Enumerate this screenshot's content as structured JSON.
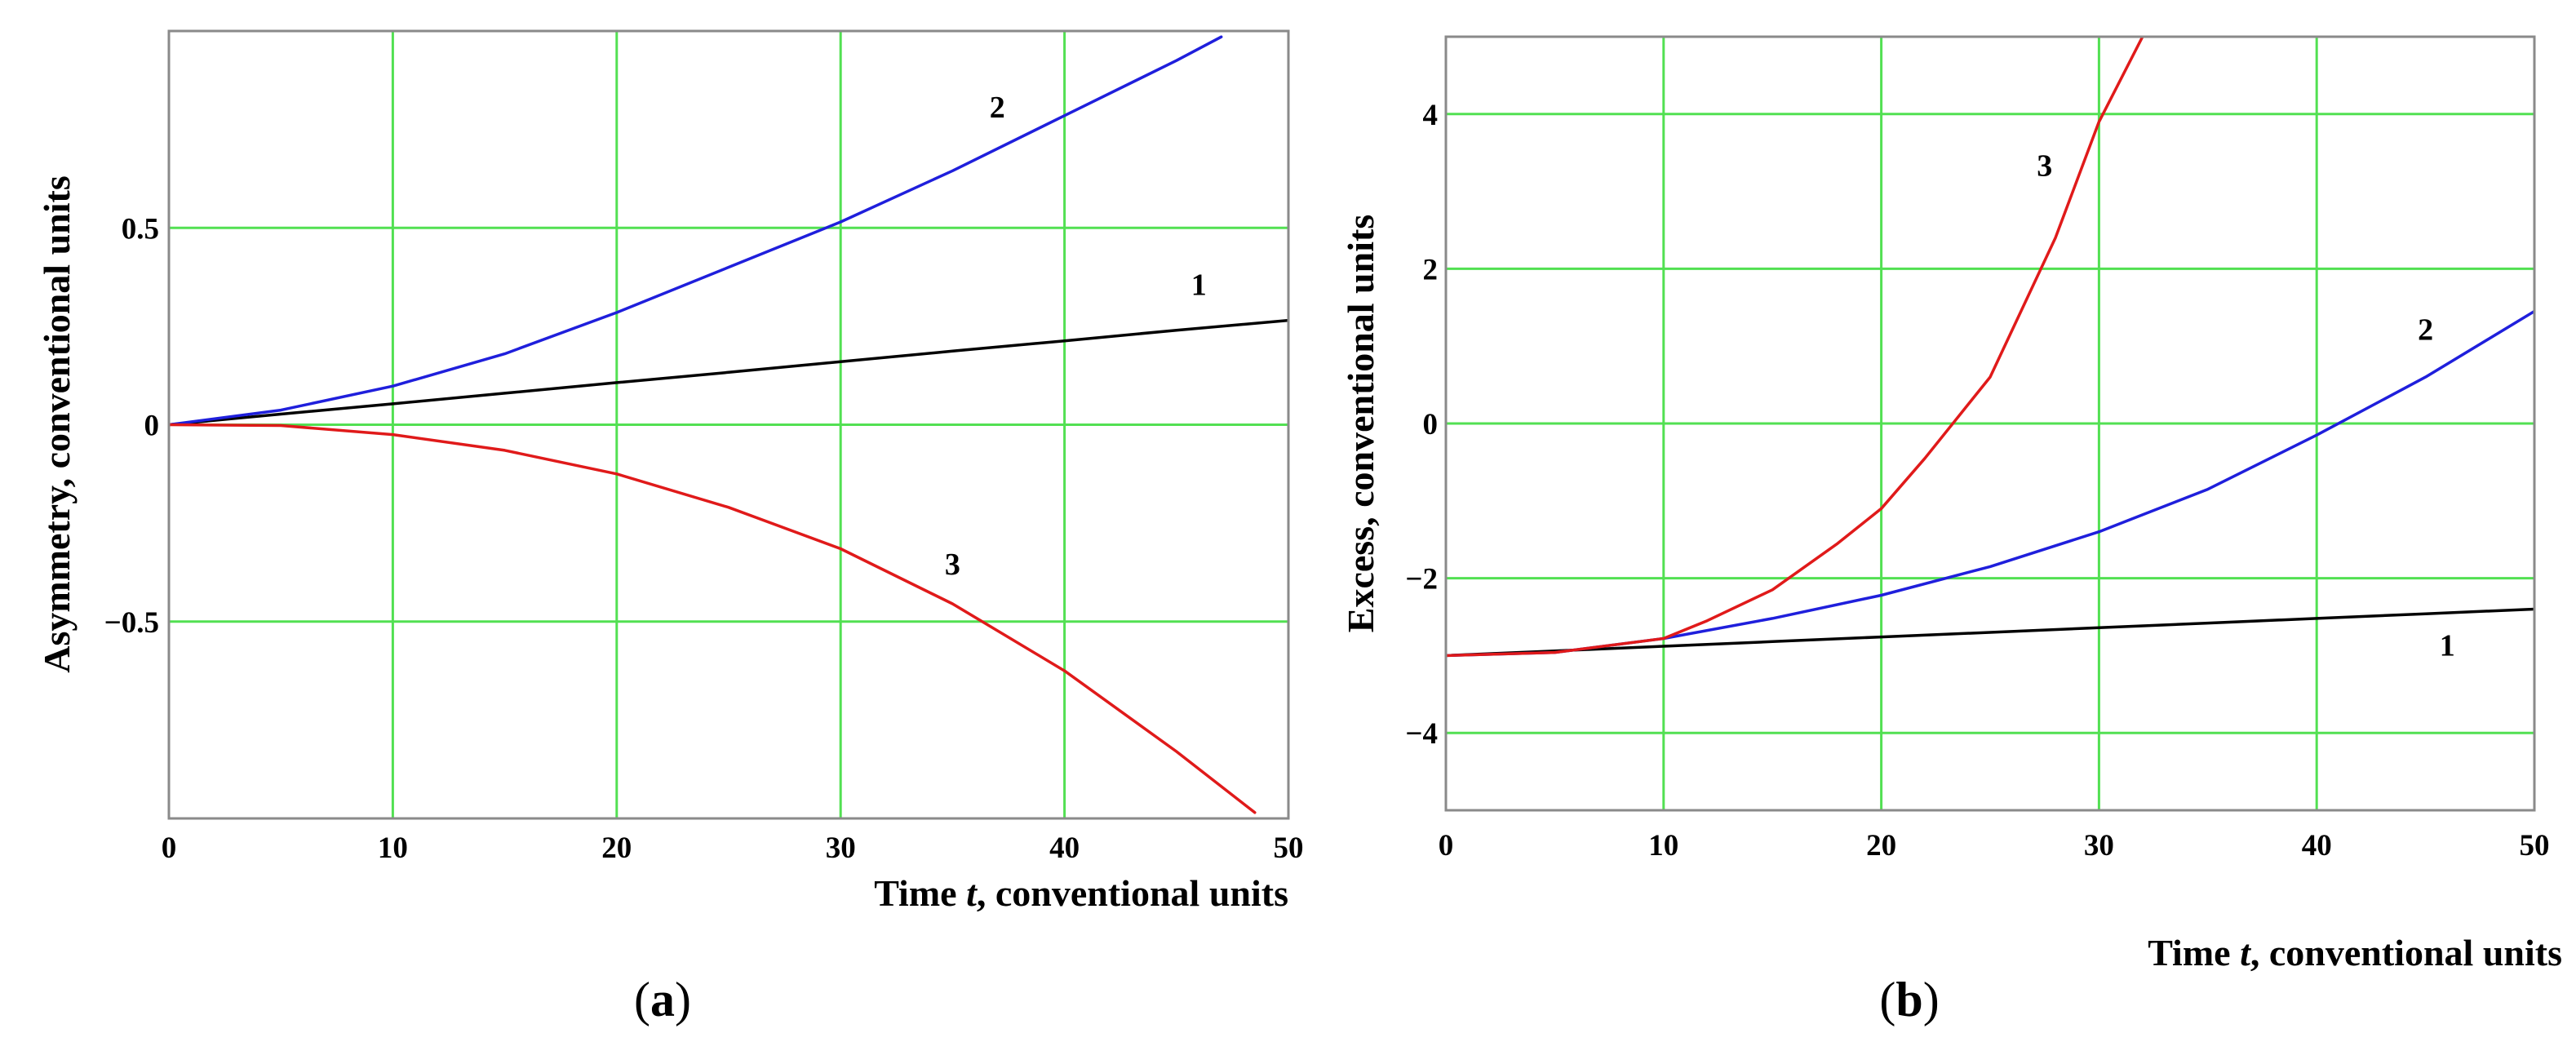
{
  "chart_data": [
    {
      "type": "line",
      "panel_label_parts": [
        "(",
        "a",
        ")"
      ],
      "xlabel_parts": [
        "Time ",
        "t",
        ", conventional units"
      ],
      "ylabel": "Asymmetry, conventional units",
      "xlim": [
        0,
        50
      ],
      "ylim": [
        -1.0,
        1.0
      ],
      "grid": true,
      "x_ticks": [
        0,
        10,
        20,
        30,
        40,
        50
      ],
      "x_tick_labels": [
        "0",
        "10",
        "20",
        "30",
        "40",
        "50"
      ],
      "y_ticks": [
        -0.5,
        0,
        0.5
      ],
      "y_tick_labels": [
        "−0.5",
        "0",
        "0.5"
      ],
      "series": [
        {
          "name": "1",
          "color": "#000000",
          "x": [
            0,
            5,
            10,
            15,
            20,
            25,
            30,
            35,
            40,
            45,
            50
          ],
          "y": [
            0,
            0.027,
            0.053,
            0.08,
            0.107,
            0.133,
            0.16,
            0.187,
            0.213,
            0.24,
            0.265
          ]
        },
        {
          "name": "2",
          "color": "#1f1fdc",
          "x": [
            0,
            5,
            10,
            15,
            20,
            25,
            30,
            35,
            40,
            45,
            47
          ],
          "y": [
            0,
            0.037,
            0.098,
            0.18,
            0.285,
            0.4,
            0.515,
            0.645,
            0.785,
            0.925,
            0.985
          ]
        },
        {
          "name": "3",
          "color": "#e01a1a",
          "x": [
            0,
            5,
            10,
            15,
            20,
            25,
            30,
            35,
            40,
            45,
            48.5
          ],
          "y": [
            0,
            -0.002,
            -0.025,
            -0.065,
            -0.125,
            -0.21,
            -0.315,
            -0.455,
            -0.625,
            -0.83,
            -0.985
          ]
        }
      ],
      "annotations": [
        {
          "text": "1",
          "x": 46,
          "y": 0.33
        },
        {
          "text": "2",
          "x": 37,
          "y": 0.78
        },
        {
          "text": "3",
          "x": 35,
          "y": -0.38
        }
      ]
    },
    {
      "type": "line",
      "panel_label_parts": [
        "(",
        "b",
        ")"
      ],
      "xlabel_parts": [
        "Time ",
        "t",
        ", conventional units"
      ],
      "ylabel": "Excess, conventional units",
      "xlim": [
        0,
        50
      ],
      "ylim": [
        -5,
        5
      ],
      "grid": true,
      "x_ticks": [
        0,
        10,
        20,
        30,
        40,
        50
      ],
      "x_tick_labels": [
        "0",
        "10",
        "20",
        "30",
        "40",
        "50"
      ],
      "y_ticks": [
        -4,
        -2,
        0,
        2,
        4
      ],
      "y_tick_labels": [
        "−4",
        "−2",
        "0",
        "2",
        "4"
      ],
      "series": [
        {
          "name": "1",
          "color": "#000000",
          "x": [
            0,
            5,
            10,
            15,
            20,
            25,
            30,
            35,
            40,
            45,
            50
          ],
          "y": [
            -3.0,
            -2.94,
            -2.88,
            -2.82,
            -2.76,
            -2.7,
            -2.64,
            -2.58,
            -2.52,
            -2.46,
            -2.4
          ]
        },
        {
          "name": "2",
          "color": "#1f1fdc",
          "x": [
            0,
            5,
            10,
            15,
            20,
            25,
            30,
            35,
            40,
            45,
            50
          ],
          "y": [
            -3.0,
            -2.96,
            -2.78,
            -2.52,
            -2.22,
            -1.85,
            -1.4,
            -0.85,
            -0.15,
            0.6,
            1.45
          ]
        },
        {
          "name": "3",
          "color": "#e01a1a",
          "x": [
            0,
            5,
            10,
            12,
            15,
            18,
            20,
            22,
            25,
            28,
            30,
            32
          ],
          "y": [
            -3.0,
            -2.96,
            -2.78,
            -2.55,
            -2.15,
            -1.55,
            -1.1,
            -0.45,
            0.6,
            2.4,
            3.9,
            5.0
          ]
        }
      ],
      "annotations": [
        {
          "text": "1",
          "x": 46,
          "y": -3.0
        },
        {
          "text": "2",
          "x": 45,
          "y": 1.08
        },
        {
          "text": "3",
          "x": 27.5,
          "y": 3.2
        }
      ]
    }
  ]
}
